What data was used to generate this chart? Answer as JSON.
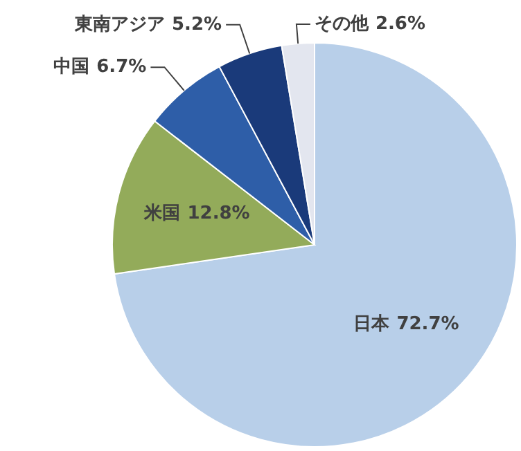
{
  "chart_data": {
    "type": "pie",
    "categories": [
      "日本",
      "米国",
      "中国",
      "東南アジア",
      "その他"
    ],
    "values": [
      72.7,
      12.8,
      6.7,
      5.2,
      2.6
    ],
    "colors": [
      "#b8cfe9",
      "#93ab5a",
      "#2e5ea8",
      "#1a3a7a",
      "#e3e6ef"
    ],
    "value_labels": [
      "72.7%",
      "12.8%",
      "6.7%",
      "5.2%",
      "2.6%"
    ]
  }
}
